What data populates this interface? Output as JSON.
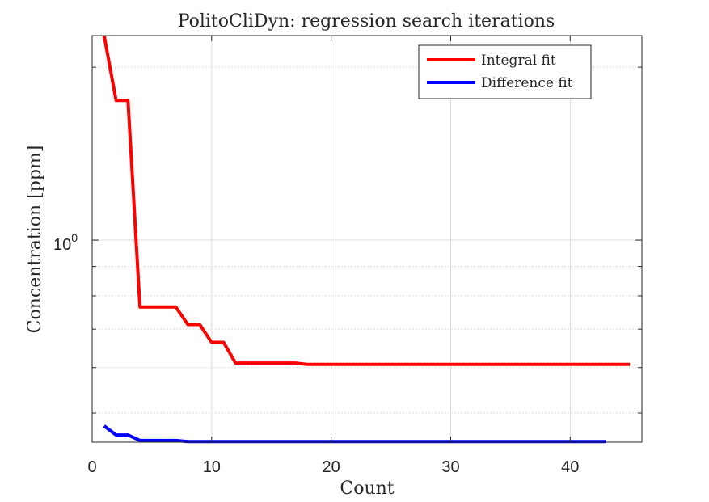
{
  "chart_data": {
    "type": "line",
    "title": "PolitoCliDyn: regression search iterations",
    "xlabel": "Count",
    "ylabel": "Concentration [ppm]",
    "xlim": [
      0,
      46
    ],
    "ylim": [
      0.445,
      2.27
    ],
    "yscale": "log",
    "grid": true,
    "minor_grid": true,
    "legend_position": "top-right",
    "x_ticks": [
      0,
      10,
      20,
      30,
      40
    ],
    "y_ticks": [
      {
        "value": 1,
        "base": "10",
        "exp": "0"
      }
    ],
    "series": [
      {
        "name": "Integral fit",
        "color": "#ff0000",
        "points": [
          [
            1,
            2.27
          ],
          [
            2,
            1.75
          ],
          [
            3,
            1.75
          ],
          [
            4,
            0.765
          ],
          [
            5,
            0.765
          ],
          [
            6,
            0.765
          ],
          [
            7,
            0.765
          ],
          [
            8,
            0.713
          ],
          [
            9,
            0.713
          ],
          [
            10,
            0.664
          ],
          [
            11,
            0.664
          ],
          [
            12,
            0.611
          ],
          [
            13,
            0.611
          ],
          [
            14,
            0.611
          ],
          [
            15,
            0.611
          ],
          [
            16,
            0.611
          ],
          [
            17,
            0.611
          ],
          [
            18,
            0.608
          ],
          [
            20,
            0.608
          ],
          [
            25,
            0.608
          ],
          [
            30,
            0.608
          ],
          [
            35,
            0.608
          ],
          [
            40,
            0.608
          ],
          [
            45,
            0.608
          ]
        ]
      },
      {
        "name": "Difference fit",
        "color": "#0000ff",
        "points": [
          [
            1,
            0.475
          ],
          [
            2,
            0.458
          ],
          [
            3,
            0.458
          ],
          [
            4,
            0.448
          ],
          [
            5,
            0.448
          ],
          [
            6,
            0.448
          ],
          [
            7,
            0.448
          ],
          [
            8,
            0.446
          ],
          [
            10,
            0.446
          ],
          [
            15,
            0.446
          ],
          [
            20,
            0.446
          ],
          [
            25,
            0.446
          ],
          [
            30,
            0.446
          ],
          [
            35,
            0.446
          ],
          [
            40,
            0.446
          ],
          [
            43,
            0.446
          ]
        ]
      }
    ]
  }
}
